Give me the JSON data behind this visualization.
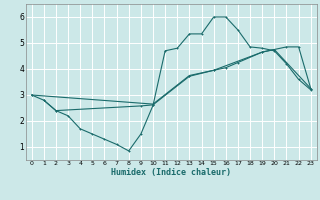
{
  "title": "",
  "xlabel": "Humidex (Indice chaleur)",
  "bg_color": "#cce8e8",
  "grid_color": "#ffffff",
  "line_color": "#1a6b6b",
  "xlim": [
    -0.5,
    23.5
  ],
  "ylim": [
    0.5,
    6.5
  ],
  "xticks": [
    0,
    1,
    2,
    3,
    4,
    5,
    6,
    7,
    8,
    9,
    10,
    11,
    12,
    13,
    14,
    15,
    16,
    17,
    18,
    19,
    20,
    21,
    22,
    23
  ],
  "yticks": [
    1,
    2,
    3,
    4,
    5,
    6
  ],
  "line1_x": [
    0,
    1,
    2,
    3,
    4,
    5,
    6,
    7,
    8,
    9,
    10,
    11,
    12,
    13,
    14,
    15,
    16,
    17,
    18,
    19,
    20,
    21,
    22,
    23
  ],
  "line1_y": [
    3.0,
    2.8,
    2.4,
    2.2,
    1.7,
    1.5,
    1.3,
    1.1,
    0.85,
    1.5,
    2.6,
    4.7,
    4.8,
    5.35,
    5.35,
    6.0,
    6.0,
    5.5,
    4.85,
    4.8,
    4.7,
    4.2,
    3.6,
    3.2
  ],
  "line2_x": [
    0,
    10,
    13,
    15,
    19,
    20,
    23
  ],
  "line2_y": [
    3.0,
    2.65,
    3.75,
    3.95,
    4.65,
    4.75,
    3.25
  ],
  "line3_x": [
    1,
    2,
    9,
    10,
    13,
    15,
    16,
    17,
    19,
    20,
    21,
    22,
    23
  ],
  "line3_y": [
    2.8,
    2.4,
    2.58,
    2.62,
    3.72,
    3.95,
    4.05,
    4.25,
    4.65,
    4.75,
    4.85,
    4.85,
    3.25
  ]
}
